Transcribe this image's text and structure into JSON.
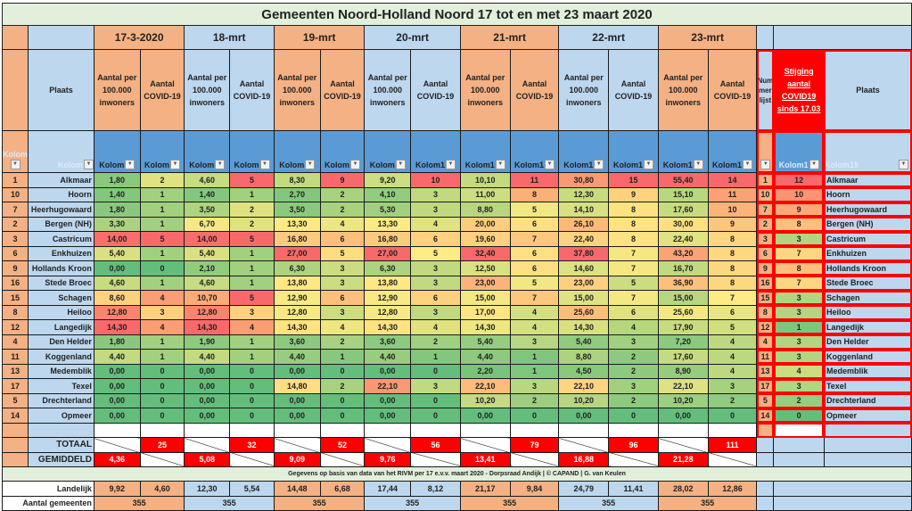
{
  "title": "Gemeenten Noord-Holland Noord 17 tot en met 23 maart 2020",
  "dates": [
    "17-3-2020",
    "18-mrt",
    "19-mrt",
    "20-mrt",
    "21-mrt",
    "22-mrt",
    "23-mrt"
  ],
  "headers": {
    "plaats": "Plaats",
    "per100k": "Aantal per 100.000 inwoners",
    "covid": "Aantal COVID-19",
    "nummerlijst": "Num mer lijst",
    "stijging": "Stijging aantal COVID19 sinds 17.03",
    "plaats2": "Plaats"
  },
  "filter_labels": {
    "idx": "Kolom",
    "plaats": "Kolom",
    "cols": [
      "Kolom",
      "Kolom",
      "Kolom",
      "Kolom",
      "Kolom",
      "Kolom",
      "Kolom",
      "Kolom1",
      "Kolom1",
      "Kolom1",
      "Kolom1",
      "Kolom1",
      "Kolom1",
      "Kolom1"
    ],
    "num": "",
    "stijging": "Kolom1",
    "plaats2": "Kolom19"
  },
  "colors": {
    "orange_header": "#f4b183",
    "blue_header": "#bdd7ee",
    "filter_blue": "#5b9bd5",
    "title_green": "#e2efda",
    "total_red": "#ff0000",
    "scale_green": "#63be7b",
    "scale_yellow": "#ffeb84",
    "scale_red": "#f8696b"
  },
  "rows": [
    {
      "idx": "1",
      "plaats": "Alkmaar",
      "v": [
        "1,80",
        "2",
        "4,60",
        "5",
        "8,30",
        "9",
        "9,20",
        "10",
        "10,10",
        "11",
        "30,80",
        "15",
        "55,40",
        "14"
      ],
      "num": "1",
      "stijging": "12",
      "plaats2": "Alkmaar"
    },
    {
      "idx": "10",
      "plaats": "Hoorn",
      "v": [
        "1,40",
        "1",
        "1,40",
        "1",
        "2,70",
        "2",
        "4,10",
        "3",
        "11,00",
        "8",
        "12,30",
        "9",
        "15,10",
        "11"
      ],
      "num": "10",
      "stijging": "10",
      "plaats2": "Hoorn"
    },
    {
      "idx": "7",
      "plaats": "Heerhugowaard",
      "v": [
        "1,80",
        "1",
        "3,50",
        "2",
        "3,50",
        "2",
        "5,30",
        "3",
        "8,80",
        "5",
        "14,10",
        "8",
        "17,60",
        "10"
      ],
      "num": "7",
      "stijging": "9",
      "plaats2": "Heerhugowaard"
    },
    {
      "idx": "2",
      "plaats": "Bergen (NH)",
      "v": [
        "3,30",
        "1",
        "6,70",
        "2",
        "13,30",
        "4",
        "13,30",
        "4",
        "20,00",
        "6",
        "26,10",
        "8",
        "30,00",
        "9"
      ],
      "num": "2",
      "stijging": "8",
      "plaats2": "Bergen (NH)"
    },
    {
      "idx": "3",
      "plaats": "Castricum",
      "v": [
        "14,00",
        "5",
        "14,00",
        "5",
        "16,80",
        "6",
        "16,80",
        "6",
        "19,60",
        "7",
        "22,40",
        "8",
        "22,40",
        "8"
      ],
      "num": "3",
      "stijging": "3",
      "plaats2": "Castricum"
    },
    {
      "idx": "6",
      "plaats": "Enkhuizen",
      "v": [
        "5,40",
        "1",
        "5,40",
        "1",
        "27,00",
        "5",
        "27,00",
        "5",
        "32,40",
        "6",
        "37,80",
        "7",
        "43,20",
        "8"
      ],
      "num": "6",
      "stijging": "7",
      "plaats2": "Enkhuizen"
    },
    {
      "idx": "9",
      "plaats": "Hollands Kroon",
      "v": [
        "0,00",
        "0",
        "2,10",
        "1",
        "6,30",
        "3",
        "6,30",
        "3",
        "12,50",
        "6",
        "14,60",
        "7",
        "16,70",
        "8"
      ],
      "num": "9",
      "stijging": "8",
      "plaats2": "Hollands Kroon"
    },
    {
      "idx": "16",
      "plaats": "Stede Broec",
      "v": [
        "4,60",
        "1",
        "4,60",
        "1",
        "13,80",
        "3",
        "13,80",
        "3",
        "23,00",
        "5",
        "23,00",
        "5",
        "36,90",
        "8"
      ],
      "num": "16",
      "stijging": "7",
      "plaats2": "Stede Broec"
    },
    {
      "idx": "15",
      "plaats": "Schagen",
      "v": [
        "8,60",
        "4",
        "10,70",
        "5",
        "12,90",
        "6",
        "12,90",
        "6",
        "15,00",
        "7",
        "15,00",
        "7",
        "15,00",
        "7"
      ],
      "num": "15",
      "stijging": "3",
      "plaats2": "Schagen"
    },
    {
      "idx": "8",
      "plaats": "Heiloo",
      "v": [
        "12,80",
        "3",
        "12,80",
        "3",
        "12,80",
        "3",
        "12,80",
        "3",
        "17,00",
        "4",
        "25,60",
        "6",
        "25,60",
        "6"
      ],
      "num": "8",
      "stijging": "3",
      "plaats2": "Heiloo"
    },
    {
      "idx": "12",
      "plaats": "Langedijk",
      "v": [
        "14,30",
        "4",
        "14,30",
        "4",
        "14,30",
        "4",
        "14,30",
        "4",
        "14,30",
        "4",
        "14,30",
        "4",
        "17,90",
        "5"
      ],
      "num": "12",
      "stijging": "1",
      "plaats2": "Langedijk"
    },
    {
      "idx": "4",
      "plaats": "Den Helder",
      "v": [
        "1,80",
        "1",
        "1,90",
        "1",
        "3,60",
        "2",
        "3,60",
        "2",
        "5,40",
        "3",
        "5,40",
        "3",
        "7,20",
        "4"
      ],
      "num": "4",
      "stijging": "3",
      "plaats2": "Den Helder"
    },
    {
      "idx": "11",
      "plaats": "Koggenland",
      "v": [
        "4,40",
        "1",
        "4,40",
        "1",
        "4,40",
        "1",
        "4,40",
        "1",
        "4,40",
        "1",
        "8,80",
        "2",
        "17,60",
        "4"
      ],
      "num": "11",
      "stijging": "3",
      "plaats2": "Koggenland"
    },
    {
      "idx": "13",
      "plaats": "Medemblik",
      "v": [
        "0,00",
        "0",
        "0,00",
        "0",
        "0,00",
        "0",
        "0,00",
        "0",
        "2,20",
        "1",
        "4,50",
        "2",
        "8,90",
        "4"
      ],
      "num": "13",
      "stijging": "4",
      "plaats2": "Medemblik"
    },
    {
      "idx": "17",
      "plaats": "Texel",
      "v": [
        "0,00",
        "0",
        "0,00",
        "0",
        "14,80",
        "2",
        "22,10",
        "3",
        "22,10",
        "3",
        "22,10",
        "3",
        "22,10",
        "3"
      ],
      "num": "17",
      "stijging": "3",
      "plaats2": "Texel"
    },
    {
      "idx": "5",
      "plaats": "Drechterland",
      "v": [
        "0,00",
        "0",
        "0,00",
        "0",
        "0,00",
        "0",
        "0,00",
        "0",
        "10,20",
        "2",
        "10,20",
        "2",
        "10,20",
        "2"
      ],
      "num": "5",
      "stijging": "2",
      "plaats2": "Drechterland"
    },
    {
      "idx": "14",
      "plaats": "Opmeer",
      "v": [
        "0,00",
        "0",
        "0,00",
        "0",
        "0,00",
        "0",
        "0,00",
        "0",
        "0,00",
        "0",
        "0,00",
        "0",
        "0,00",
        "0"
      ],
      "num": "14",
      "stijging": "0",
      "plaats2": "Opmeer"
    }
  ],
  "totaal": {
    "label": "TOTAAL",
    "values": [
      "25",
      "32",
      "52",
      "56",
      "79",
      "96",
      "111"
    ]
  },
  "gemiddeld": {
    "label": "GEMIDDELD",
    "values": [
      "4,36",
      "5,08",
      "9,09",
      "9,76",
      "13,41",
      "16,88",
      "21,28"
    ]
  },
  "note": "Gegevens op basis van data van het RIVM per 17 e.v.v. maart 2020 - Dorpsraad Andijk | © CAPAND | G. van Keulen",
  "landelijk": {
    "label": "Landelijk",
    "values": [
      "9,92",
      "4,60",
      "12,30",
      "5,54",
      "14,48",
      "6,68",
      "17,44",
      "8,12",
      "21,17",
      "9,84",
      "24,79",
      "11,41",
      "28,02",
      "12,86"
    ]
  },
  "aantal_gemeenten": {
    "label": "Aantal gemeenten",
    "values": [
      "355",
      "355",
      "355",
      "355",
      "355",
      "355",
      "355"
    ]
  }
}
